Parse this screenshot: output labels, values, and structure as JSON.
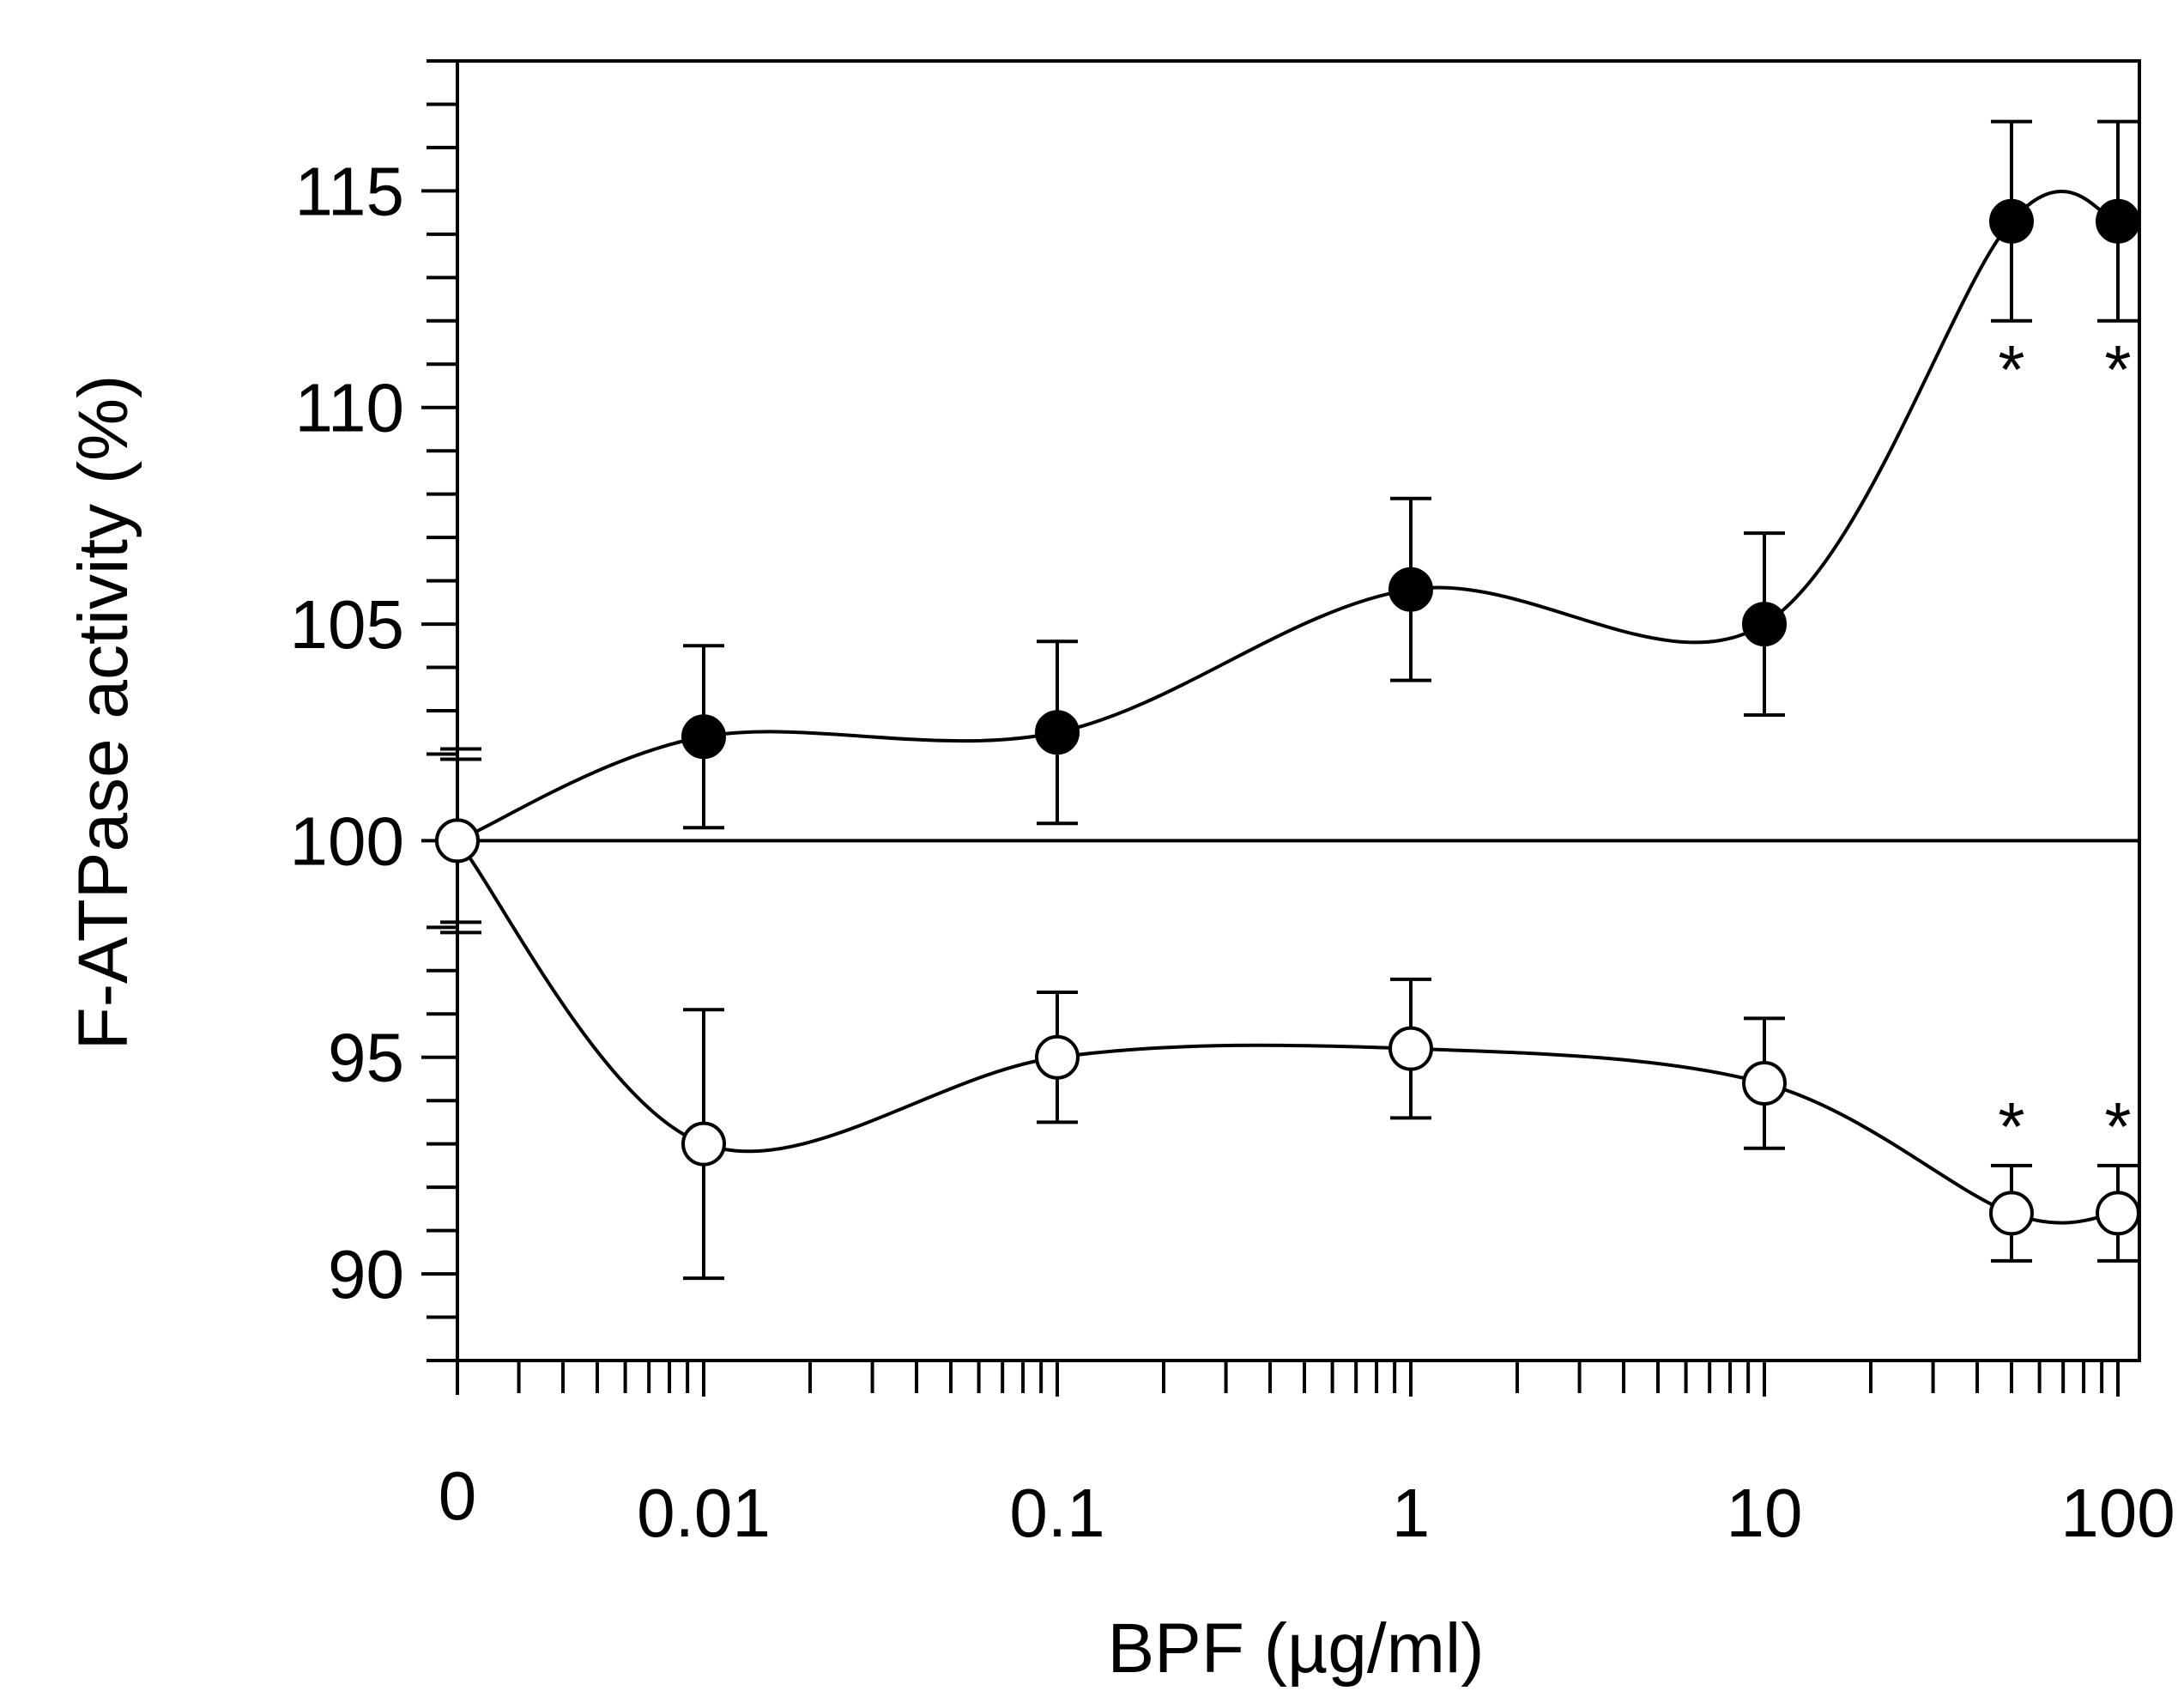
{
  "chart_data": {
    "type": "line",
    "title": "",
    "xlabel": "BPF (µg/ml)",
    "ylabel": "F-ATPase activity (%)",
    "x_scale": "log with broken axis at 0",
    "x_categories": [
      "0",
      "0.01",
      "0.1",
      "1",
      "10",
      "100"
    ],
    "x": [
      0,
      0.01,
      0.1,
      1,
      10,
      50,
      100
    ],
    "ylim": [
      88,
      118
    ],
    "yticks": [
      90,
      95,
      100,
      105,
      110,
      115
    ],
    "ytick_labels": [
      "90",
      "95",
      "100",
      "105",
      "110",
      "115"
    ],
    "reference_line": 100,
    "grid": false,
    "series": [
      {
        "marker": "filled-circle",
        "color": "#000000",
        "values": [
          100,
          102.4,
          102.5,
          105.8,
          105.0,
          114.3,
          114.3
        ],
        "errors": [
          0,
          2.1,
          2.1,
          2.1,
          2.1,
          2.3,
          2.3
        ],
        "significance": [
          "",
          "",
          "",
          "",
          "",
          "*",
          "*"
        ]
      },
      {
        "marker": "open-circle",
        "color": "#000000",
        "values": [
          100,
          93.0,
          95.0,
          95.2,
          94.4,
          91.4,
          91.4
        ],
        "errors": [
          0,
          3.1,
          1.5,
          1.6,
          1.5,
          1.1,
          1.1
        ],
        "significance": [
          "",
          "",
          "",
          "",
          "",
          "*",
          "*"
        ]
      }
    ]
  }
}
